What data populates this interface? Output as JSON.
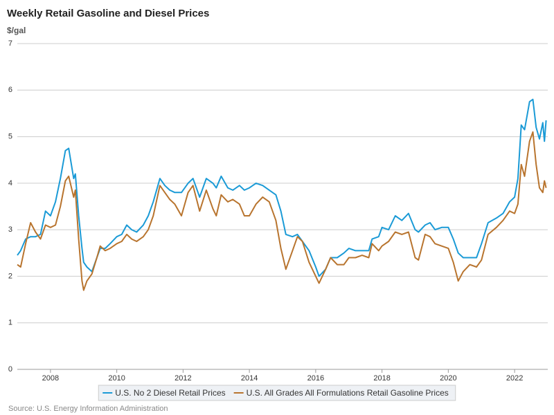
{
  "chart_data": {
    "type": "line",
    "title": "Weekly Retail Gasoline and Diesel Prices",
    "y_label": "$/gal",
    "source": "Source: U.S. Energy Information Administration",
    "x": [
      2007.0,
      2007.1,
      2007.25,
      2007.4,
      2007.55,
      2007.7,
      2007.85,
      2008.0,
      2008.15,
      2008.3,
      2008.45,
      2008.55,
      2008.7,
      2008.75,
      2008.85,
      2008.95,
      2009.0,
      2009.1,
      2009.25,
      2009.4,
      2009.5,
      2009.65,
      2009.8,
      2010.0,
      2010.15,
      2010.3,
      2010.45,
      2010.6,
      2010.8,
      2010.95,
      2011.1,
      2011.3,
      2011.45,
      2011.6,
      2011.75,
      2011.95,
      2012.15,
      2012.3,
      2012.5,
      2012.7,
      2012.9,
      2013.0,
      2013.15,
      2013.35,
      2013.5,
      2013.7,
      2013.85,
      2014.0,
      2014.2,
      2014.4,
      2014.6,
      2014.8,
      2014.95,
      2015.1,
      2015.3,
      2015.45,
      2015.6,
      2015.8,
      2016.0,
      2016.1,
      2016.3,
      2016.45,
      2016.65,
      2016.85,
      2017.0,
      2017.2,
      2017.4,
      2017.6,
      2017.7,
      2017.9,
      2018.0,
      2018.2,
      2018.4,
      2018.6,
      2018.8,
      2019.0,
      2019.1,
      2019.3,
      2019.45,
      2019.6,
      2019.8,
      2020.0,
      2020.15,
      2020.3,
      2020.45,
      2020.65,
      2020.85,
      2021.0,
      2021.2,
      2021.45,
      2021.65,
      2021.85,
      2022.0,
      2022.1,
      2022.2,
      2022.3,
      2022.45,
      2022.55,
      2022.65,
      2022.75,
      2022.85,
      2022.9,
      2022.95
    ],
    "series": [
      {
        "name": "U.S. No 2 Diesel Retail Prices",
        "color": "#1a9ad6",
        "values": [
          2.45,
          2.55,
          2.8,
          2.85,
          2.85,
          2.9,
          3.4,
          3.3,
          3.6,
          4.1,
          4.7,
          4.75,
          4.1,
          4.2,
          3.3,
          2.6,
          2.3,
          2.2,
          2.1,
          2.4,
          2.6,
          2.6,
          2.7,
          2.85,
          2.9,
          3.1,
          3.0,
          2.95,
          3.1,
          3.3,
          3.6,
          4.1,
          3.95,
          3.85,
          3.8,
          3.8,
          4.0,
          4.1,
          3.7,
          4.1,
          4.0,
          3.9,
          4.15,
          3.9,
          3.85,
          3.95,
          3.85,
          3.9,
          4.0,
          3.95,
          3.85,
          3.75,
          3.4,
          2.9,
          2.85,
          2.9,
          2.75,
          2.55,
          2.2,
          2.0,
          2.15,
          2.4,
          2.4,
          2.5,
          2.6,
          2.55,
          2.55,
          2.55,
          2.8,
          2.85,
          3.05,
          3.0,
          3.3,
          3.2,
          3.35,
          3.0,
          2.95,
          3.1,
          3.15,
          3.0,
          3.05,
          3.05,
          2.8,
          2.5,
          2.4,
          2.4,
          2.4,
          2.7,
          3.15,
          3.25,
          3.35,
          3.6,
          3.7,
          4.1,
          5.25,
          5.15,
          5.75,
          5.8,
          5.2,
          4.95,
          5.3,
          4.9,
          5.35
        ]
      },
      {
        "name": "U.S. All Grades All Formulations Retail Gasoline Prices",
        "color": "#b8742e",
        "values": [
          2.25,
          2.2,
          2.7,
          3.15,
          2.95,
          2.8,
          3.1,
          3.05,
          3.1,
          3.5,
          4.05,
          4.15,
          3.7,
          3.85,
          2.8,
          1.9,
          1.7,
          1.9,
          2.05,
          2.4,
          2.65,
          2.55,
          2.6,
          2.7,
          2.75,
          2.9,
          2.8,
          2.75,
          2.85,
          3.0,
          3.3,
          3.95,
          3.8,
          3.65,
          3.55,
          3.3,
          3.8,
          3.95,
          3.4,
          3.85,
          3.45,
          3.3,
          3.75,
          3.6,
          3.65,
          3.55,
          3.3,
          3.3,
          3.55,
          3.7,
          3.6,
          3.2,
          2.6,
          2.15,
          2.55,
          2.85,
          2.75,
          2.3,
          2.0,
          1.85,
          2.15,
          2.4,
          2.25,
          2.25,
          2.4,
          2.4,
          2.45,
          2.4,
          2.7,
          2.55,
          2.65,
          2.75,
          2.95,
          2.9,
          2.95,
          2.4,
          2.35,
          2.9,
          2.85,
          2.7,
          2.65,
          2.6,
          2.3,
          1.9,
          2.1,
          2.25,
          2.2,
          2.35,
          2.9,
          3.05,
          3.2,
          3.4,
          3.35,
          3.55,
          4.4,
          4.15,
          4.9,
          5.1,
          4.4,
          3.9,
          3.8,
          4.05,
          3.9
        ]
      }
    ],
    "xlim": [
      2007,
      2023
    ],
    "xticks": [
      2008,
      2010,
      2012,
      2014,
      2016,
      2018,
      2020,
      2022
    ],
    "ylim": [
      0,
      7
    ],
    "yticks": [
      0,
      1,
      2,
      3,
      4,
      5,
      6,
      7
    ],
    "grid": true
  }
}
